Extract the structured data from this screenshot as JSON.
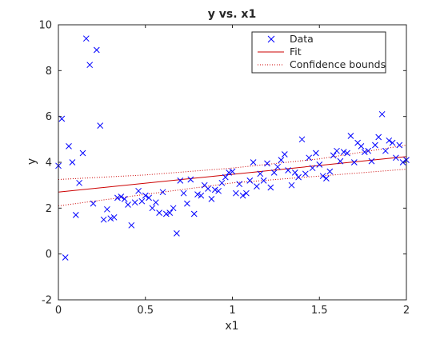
{
  "chart_data": {
    "type": "scatter",
    "title": "y vs. x1",
    "xlabel": "x1",
    "ylabel": "y",
    "xlim": [
      0,
      2
    ],
    "ylim": [
      -2,
      10
    ],
    "x_ticks": [
      "0",
      "0.5",
      "1",
      "1.5",
      "2"
    ],
    "y_ticks": [
      "-2",
      "0",
      "2",
      "4",
      "6",
      "8",
      "10"
    ],
    "grid": false,
    "box": true,
    "legend_position": "top-right",
    "colors": {
      "data": "#0000ff",
      "fit": "#cc0000",
      "bounds": "#cc0000",
      "axes": "#262626"
    },
    "series": [
      {
        "name": "Data",
        "marker": "x",
        "points": [
          [
            0.0,
            3.85
          ],
          [
            0.02,
            5.9
          ],
          [
            0.04,
            -0.15
          ],
          [
            0.06,
            4.7
          ],
          [
            0.08,
            4.0
          ],
          [
            0.1,
            1.7
          ],
          [
            0.12,
            3.1
          ],
          [
            0.14,
            4.4
          ],
          [
            0.16,
            9.4
          ],
          [
            0.18,
            8.25
          ],
          [
            0.2,
            2.2
          ],
          [
            0.22,
            8.9
          ],
          [
            0.24,
            5.6
          ],
          [
            0.26,
            1.5
          ],
          [
            0.28,
            1.95
          ],
          [
            0.3,
            1.55
          ],
          [
            0.32,
            1.6
          ],
          [
            0.34,
            2.45
          ],
          [
            0.36,
            2.5
          ],
          [
            0.38,
            2.4
          ],
          [
            0.4,
            2.15
          ],
          [
            0.42,
            1.25
          ],
          [
            0.44,
            2.25
          ],
          [
            0.46,
            2.75
          ],
          [
            0.48,
            2.3
          ],
          [
            0.5,
            2.55
          ],
          [
            0.52,
            2.45
          ],
          [
            0.54,
            2.0
          ],
          [
            0.56,
            2.25
          ],
          [
            0.58,
            1.8
          ],
          [
            0.6,
            2.7
          ],
          [
            0.62,
            1.75
          ],
          [
            0.64,
            1.8
          ],
          [
            0.66,
            2.0
          ],
          [
            0.68,
            0.9
          ],
          [
            0.7,
            3.2
          ],
          [
            0.72,
            2.65
          ],
          [
            0.74,
            2.2
          ],
          [
            0.76,
            3.25
          ],
          [
            0.78,
            1.75
          ],
          [
            0.8,
            2.6
          ],
          [
            0.82,
            2.55
          ],
          [
            0.84,
            3.0
          ],
          [
            0.86,
            2.85
          ],
          [
            0.88,
            2.4
          ],
          [
            0.9,
            2.8
          ],
          [
            0.92,
            2.75
          ],
          [
            0.94,
            3.1
          ],
          [
            0.96,
            3.35
          ],
          [
            0.98,
            3.55
          ],
          [
            1.0,
            3.6
          ],
          [
            1.02,
            2.65
          ],
          [
            1.04,
            3.05
          ],
          [
            1.06,
            2.55
          ],
          [
            1.08,
            2.65
          ],
          [
            1.1,
            3.2
          ],
          [
            1.12,
            4.0
          ],
          [
            1.14,
            2.95
          ],
          [
            1.16,
            3.5
          ],
          [
            1.18,
            3.2
          ],
          [
            1.2,
            3.95
          ],
          [
            1.22,
            2.9
          ],
          [
            1.24,
            3.55
          ],
          [
            1.26,
            3.8
          ],
          [
            1.28,
            4.1
          ],
          [
            1.3,
            4.35
          ],
          [
            1.32,
            3.65
          ],
          [
            1.34,
            3.0
          ],
          [
            1.36,
            3.55
          ],
          [
            1.38,
            3.35
          ],
          [
            1.4,
            5.0
          ],
          [
            1.42,
            3.5
          ],
          [
            1.44,
            4.2
          ],
          [
            1.46,
            3.75
          ],
          [
            1.48,
            4.4
          ],
          [
            1.5,
            3.9
          ],
          [
            1.52,
            3.4
          ],
          [
            1.54,
            3.3
          ],
          [
            1.56,
            3.6
          ],
          [
            1.58,
            4.3
          ],
          [
            1.6,
            4.5
          ],
          [
            1.62,
            4.05
          ],
          [
            1.64,
            4.45
          ],
          [
            1.66,
            4.4
          ],
          [
            1.68,
            5.15
          ],
          [
            1.7,
            4.0
          ],
          [
            1.72,
            4.85
          ],
          [
            1.74,
            4.7
          ],
          [
            1.76,
            4.45
          ],
          [
            1.78,
            4.5
          ],
          [
            1.8,
            4.05
          ],
          [
            1.82,
            4.75
          ],
          [
            1.84,
            5.1
          ],
          [
            1.86,
            6.1
          ],
          [
            1.88,
            4.5
          ],
          [
            1.9,
            4.95
          ],
          [
            1.92,
            4.85
          ],
          [
            1.94,
            4.2
          ],
          [
            1.96,
            4.75
          ],
          [
            1.98,
            4.0
          ],
          [
            2.0,
            4.1
          ]
        ]
      },
      {
        "name": "Fit",
        "style": "solid",
        "points": [
          [
            0.0,
            2.7
          ],
          [
            2.0,
            4.25
          ]
        ]
      },
      {
        "name": "Confidence bounds",
        "style": "dotted",
        "upper": [
          [
            0.0,
            3.25
          ],
          [
            0.5,
            3.45
          ],
          [
            1.0,
            3.75
          ],
          [
            1.5,
            4.15
          ],
          [
            2.0,
            4.75
          ]
        ],
        "lower": [
          [
            0.0,
            2.1
          ],
          [
            0.5,
            2.6
          ],
          [
            1.0,
            3.1
          ],
          [
            1.5,
            3.4
          ],
          [
            2.0,
            3.7
          ]
        ]
      }
    ]
  }
}
